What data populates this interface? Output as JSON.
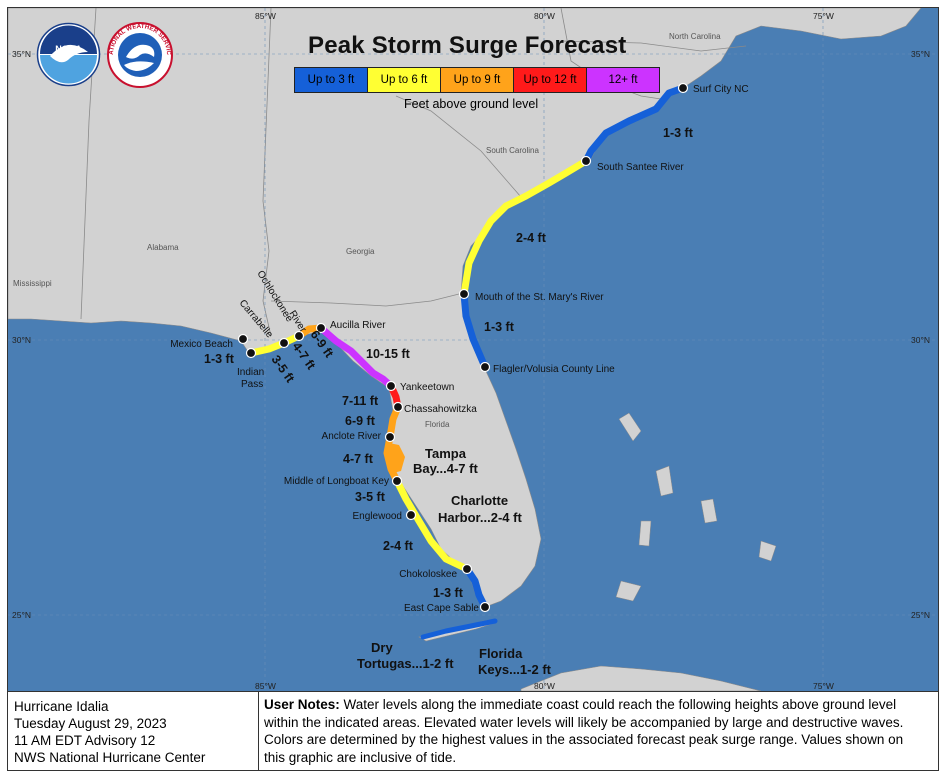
{
  "title": "Peak Storm Surge Forecast",
  "legend": {
    "items": [
      {
        "label": "Up to 3 ft",
        "color": "#1560d8"
      },
      {
        "label": "Up to 6 ft",
        "color": "#ffff33"
      },
      {
        "label": "Up to 9 ft",
        "color": "#ffa31a"
      },
      {
        "label": "Up to 12 ft",
        "color": "#ff1a1a"
      },
      {
        "label": "12+ ft",
        "color": "#cc33ff"
      }
    ],
    "subtitle": "Feet above ground level"
  },
  "agency_logos": {
    "noaa": "NOAA",
    "nws": "NATIONAL WEATHER SERVICE"
  },
  "grid_labels": {
    "lon_85": "85°W",
    "lon_80": "80°W",
    "lon_75": "75°W",
    "lat_35": "35°N",
    "lat_30": "30°N",
    "lat_25": "25°N"
  },
  "states": {
    "north_carolina": "North Carolina",
    "south_carolina": "South Carolina",
    "georgia": "Georgia",
    "alabama": "Alabama",
    "mississippi": "Mississippi",
    "florida": "Florida"
  },
  "locations": {
    "surf_city": "Surf City NC",
    "south_santee": "South Santee River",
    "st_marys": "Mouth of the St. Mary's River",
    "flagler": "Flagler/Volusia County Line",
    "aucilla": "Aucilla River",
    "ochlockonee": "Ochlockonee River",
    "carrabelle": "Carrabelle",
    "mexico_beach": "Mexico Beach",
    "indian_pass": "Indian Pass",
    "yankeetown": "Yankeetown",
    "chassahowitzka": "Chassahowitzka",
    "anclote": "Anclote River",
    "longboat": "Middle of Longboat Key",
    "englewood": "Englewood",
    "chokoloskee": "Chokoloskee",
    "east_cape_sable": "East Cape Sable"
  },
  "ranges": {
    "nc_sc": "1-3 ft",
    "sc_ga": "2-4 ft",
    "ne_fl": "1-3 ft",
    "big_bend": "10-15 ft",
    "yankeetown_chassa": "7-11 ft",
    "chassa_anclote": "6-9 ft",
    "anclote_longboat": "4-7 ft",
    "longboat_englewood": "3-5 ft",
    "englewood_chokoloskee": "2-4 ft",
    "chokoloskee_cape": "1-3 ft",
    "mexico_indian": "1-3 ft",
    "indian_carrabelle": "3-5 ft",
    "carrabelle_ochlockonee": "4-7 ft",
    "ochlockonee_aucilla": "6-9 ft",
    "tampa_bay_name": "Tampa",
    "tampa_bay_range": "Bay...4-7 ft",
    "charlotte_name": "Charlotte",
    "charlotte_range": "Harbor...2-4 ft",
    "dry_name": "Dry",
    "dry_range": "Tortugas...1-2 ft",
    "keys_name": "Florida",
    "keys_range": "Keys...1-2 ft"
  },
  "footer": {
    "storm": "Hurricane Idalia",
    "date": "Tuesday August 29, 2023",
    "advisory": "11 AM EDT Advisory 12",
    "center": "NWS National Hurricane Center",
    "notes_label": "User Notes:",
    "notes_text": " Water levels along the immediate coast could reach the following heights above ground level within the indicated areas. Elevated water levels will likely be accompanied by large and destructive waves. Colors are determined by the highest values in the associated forecast peak surge range. Values shown on this graphic are inclusive of tide."
  }
}
